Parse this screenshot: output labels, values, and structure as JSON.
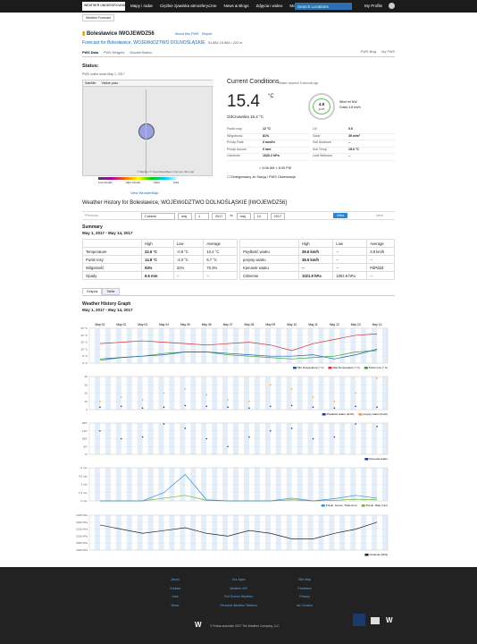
{
  "nav": {
    "items": [
      "Mapy i radar",
      "Ciężkie zjawiska atmosferyczne",
      "News & Blogs",
      "Zdjęcia i wideo",
      "More"
    ],
    "search": "Search Locations",
    "profile": "My Profile"
  },
  "breadcrumb": "Weather Forecast",
  "station": {
    "name": "Bolesławice IWOJEWDZ56",
    "about": "About this PWS",
    "report": "Report",
    "forecast": "Forecast for Bolesławice, WOJEWóDZTWO DOLNOŚLĄSKIE",
    "coords": "51.882 15.683 • 222 m",
    "tabs": [
      "PWS Data",
      "PWS Widgets",
      "WunderStation"
    ],
    "right_tabs": [
      "PWS Blog",
      "My PWS"
    ]
  },
  "status": {
    "title": "Status:",
    "note": "PWS online since May 1, 2017",
    "map_tabs": [
      "Satellite",
      "Visible pass"
    ],
    "map_legend": [
      "Low Clouds",
      "High Clouds",
      "Clear",
      "Cold"
    ],
    "map_credit": "© Mapbox © OpenStreetMap | Improve this map",
    "link": "View WunderMap"
  },
  "current": {
    "title": "Current Conditions",
    "reported": "Station reported 3 seconds ago",
    "temp": "15.4",
    "unit": "°C",
    "feels": "Odczuwalna 15.4 °C",
    "wind": "4.8",
    "wind_unit": "km/h",
    "wind_dir": "Wind rel NW",
    "gusts": "Gusts 4.8 km/h",
    "left": [
      [
        "Punkt rosy",
        "12 °C"
      ],
      [
        "Wilgotność",
        "81%"
      ],
      [
        "Precip Rate",
        "0 mm/hr"
      ],
      [
        "Precip Accum",
        "0 mm"
      ],
      [
        "Ciśnienie",
        "1020.2 hPa"
      ]
    ],
    "right": [
      [
        "UV",
        "0.0"
      ],
      [
        "Solar",
        "39 w/m²"
      ],
      [
        "Soil Moisture",
        "--"
      ],
      [
        "Soil Temp",
        "15.6 °C"
      ],
      [
        "Leaf Wetness",
        "--"
      ]
    ],
    "sunrise": "5:08 AM",
    "sunset": "8:39 PM",
    "checkbox": "Zintegrowany ze Stacją / PWS Obserwacje"
  },
  "history": {
    "title": "Weather History for Bolesławice, WOJEWóDZTWO DOLNOŚLĄSKIE [IWOJEWDZ56]",
    "controls": [
      "Custom",
      "maj",
      "1",
      "2017",
      "to",
      "maj",
      "14",
      "2017"
    ],
    "previous": "Previous",
    "view": "View",
    "next": "Next"
  },
  "summary": {
    "title": "Summary",
    "range": "May 1, 2017 - May 14, 2017",
    "headers": [
      "High",
      "Low",
      "Average"
    ],
    "left": [
      [
        "Temperature",
        "22.6 °C",
        "-0.8 °C",
        "10.4 °C"
      ],
      [
        "Punkt rosy",
        "14.8 °C",
        "-3.3 °C",
        "5.7 °C"
      ],
      [
        "Wilgotność",
        "93%",
        "31%",
        "70.3%"
      ],
      [
        "Opady",
        "6.6 mm",
        "--",
        "--"
      ]
    ],
    "right": [
      [
        "Prędkość wiatru",
        "38.6 km/h",
        "--",
        "3.8 km/h"
      ],
      [
        "porywy wiatru",
        "38.6 km/h",
        "--",
        "--"
      ],
      [
        "Kierunek wiatru",
        "--",
        "--",
        "PdPdZd"
      ],
      [
        "Ciśnienie",
        "1021.9 hPa",
        "1002.9 hPa",
        "--"
      ]
    ]
  },
  "view_tabs": [
    "Graphs",
    "Table"
  ],
  "graph": {
    "title": "Weather History Graph",
    "range": "May 1, 2017 - May 14, 2017",
    "days": [
      "May 01",
      "May 02",
      "May 03",
      "May 04",
      "May 05",
      "May 06",
      "May 07",
      "May 08",
      "May 09",
      "May 10",
      "May 11",
      "May 12",
      "May 13",
      "May 14"
    ]
  },
  "charts": [
    {
      "ylim": [
        0,
        25
      ],
      "yticks": [
        {
          "value": 0,
          "label": "0 °C"
        },
        {
          "value": 5,
          "label": "5 °C"
        },
        {
          "value": 10,
          "label": "10 °C"
        },
        {
          "value": 15,
          "label": "15 °C"
        },
        {
          "value": 20,
          "label": "20 °C"
        },
        {
          "value": 25,
          "label": "25 °C"
        }
      ],
      "series": [
        {
          "name": "Min Temperature (° C)",
          "color": "#1f5fa8",
          "style": "line",
          "values": [
            3,
            4,
            5,
            6,
            8,
            8,
            7,
            6,
            5,
            5,
            6,
            3,
            6,
            10
          ]
        },
        {
          "name": "Max Temperature (° C)",
          "color": "#d0303a",
          "style": "line",
          "values": [
            14,
            15,
            16,
            15,
            14,
            13,
            14,
            15,
            13,
            9,
            14,
            17,
            20,
            21
          ]
        },
        {
          "name": "Punkt rosy (° C)",
          "color": "#3a9a3a",
          "style": "line",
          "values": [
            2,
            4,
            5,
            7,
            8,
            8,
            6,
            5,
            4,
            3,
            4,
            5,
            8,
            9
          ]
        }
      ]
    },
    {
      "ylim": [
        0,
        40
      ],
      "yticks": [
        0,
        10,
        20,
        30,
        40
      ],
      "series": [
        {
          "name": "Prędkość wiatru (km/h)",
          "color": "#1f3f8a",
          "style": "dots",
          "values": [
            3,
            4,
            2,
            3,
            5,
            4,
            3,
            2,
            4,
            5,
            3,
            2,
            4,
            3
          ]
        },
        {
          "name": "porywy wiatru (km/h)",
          "color": "#e8a040",
          "style": "dots",
          "values": [
            10,
            15,
            12,
            20,
            25,
            18,
            12,
            10,
            30,
            25,
            15,
            10,
            20,
            38
          ]
        }
      ]
    },
    {
      "ylim": [
        0,
        360
      ],
      "yticks": [
        {
          "value": 0,
          "label": "0°"
        },
        {
          "value": 90,
          "label": "90°"
        },
        {
          "value": 180,
          "label": "180°"
        },
        {
          "value": 270,
          "label": "270°"
        },
        {
          "value": 360,
          "label": "360°"
        }
      ],
      "series": [
        {
          "name": "Kierunek wiatru",
          "color": "#1f3f8a",
          "style": "dots",
          "values": [
            270,
            180,
            200,
            350,
            300,
            180,
            90,
            200,
            270,
            300,
            180,
            200,
            350,
            320
          ]
        }
      ]
    },
    {
      "ylim": [
        0,
        6
      ],
      "yticks": [
        {
          "value": 0,
          "label": "0 mm"
        },
        {
          "value": 1.5,
          "label": "1.5 mm"
        },
        {
          "value": 3,
          "label": "3 mm"
        },
        {
          "value": 4.5,
          "label": "4.5 mm"
        },
        {
          "value": 6,
          "label": "6 mm"
        }
      ],
      "series": [
        {
          "name": "Precip. Accum. Total (mm)",
          "color": "#3a8fd0",
          "style": "line",
          "values": [
            0,
            0,
            0,
            1.5,
            4.8,
            0.2,
            0,
            0,
            0,
            0.5,
            0,
            0.4,
            1,
            0.5
          ]
        },
        {
          "name": "Precip. Rate (mm)",
          "color": "#7ab040",
          "style": "line",
          "values": [
            0,
            0,
            0,
            0.5,
            1,
            0.1,
            0,
            0,
            0,
            0.2,
            0,
            0.1,
            0.3,
            0.2
          ]
        }
      ]
    },
    {
      "ylim": [
        1000,
        1025
      ],
      "yticks": [
        {
          "value": 1000,
          "label": "1000 hPa"
        },
        {
          "value": 1005,
          "label": "1005 hPa"
        },
        {
          "value": 1010,
          "label": "1010 hPa"
        },
        {
          "value": 1015,
          "label": "1015 hPa"
        },
        {
          "value": 1020,
          "label": "1020 hPa"
        },
        {
          "value": 1025,
          "label": "1025 hPa"
        }
      ],
      "series": [
        {
          "name": "Ciśnienie (hPa)",
          "color": "#222222",
          "style": "line",
          "values": [
            1018,
            1015,
            1012,
            1014,
            1016,
            1012,
            1010,
            1014,
            1012,
            1008,
            1008,
            1012,
            1015,
            1020
          ]
        }
      ]
    }
  ],
  "footer": {
    "cols": [
      [
        "About",
        "Contact",
        "Jobs",
        "News"
      ],
      [
        "Our Apps",
        "Weather API",
        "Full Screen Weather",
        "Personal Weather Stations"
      ],
      [
        "Site Map",
        "Feedback",
        "Privacy",
        "Ad Choices"
      ]
    ],
    "copyright": "© Prawa autorskie 2017 The Weather Company, LLC"
  }
}
